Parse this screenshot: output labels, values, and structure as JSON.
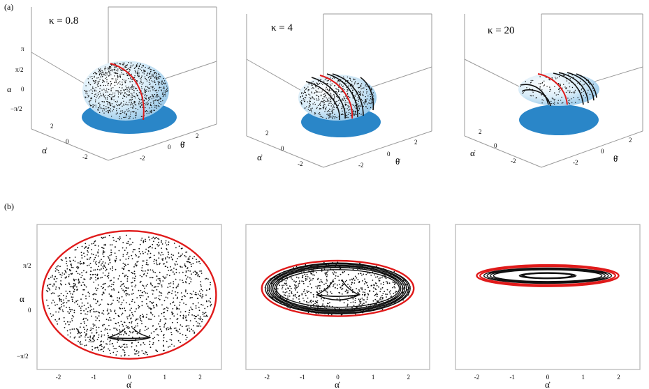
{
  "panel_labels": {
    "a": "(a)",
    "b": "(b)"
  },
  "top": {
    "kappa_labels": [
      "κ = 0.8",
      "κ = 4",
      "κ = 20"
    ],
    "z_axis_label": "α",
    "z_ticks": [
      "π",
      "π/2",
      "0",
      "−π/2"
    ],
    "adot_label": "α̇",
    "thetadot_label": "θ̇",
    "adot_ticks": [
      "2",
      "0",
      "-2"
    ],
    "thetadot_ticks": [
      "-2",
      "0",
      "2"
    ]
  },
  "bottom": {
    "y_axis_label": "α",
    "y_ticks": [
      "π/2",
      "0",
      "−π/2"
    ],
    "x_axis_label": "α̇",
    "x_ticks": [
      "-2",
      "-1",
      "0",
      "1",
      "2"
    ]
  },
  "colors": {
    "red_curve": "#e01a1a",
    "disc_blue": "#2a86c8",
    "ellipsoid_blue": "#a9d4ef",
    "frame_gray": "#b4b4b4"
  },
  "chart_data": [
    {
      "type": "scatter",
      "panel": "b1",
      "title": "",
      "xlabel": "α̇",
      "ylabel": "α",
      "xlim": [
        -2.6,
        2.6
      ],
      "ylim": [
        -1.7,
        1.7
      ],
      "series": [
        {
          "kind": "boundary",
          "center": [
            0,
            0.05
          ],
          "semi_axes": [
            2.45,
            1.5
          ]
        },
        {
          "kind": "islands",
          "center": [
            0,
            -0.95
          ],
          "semi_axes": [
            0.6,
            0.07
          ]
        }
      ]
    },
    {
      "type": "scatter",
      "panel": "b2",
      "title": "",
      "xlabel": "α̇",
      "ylabel": "",
      "xlim": [
        -2.6,
        2.6
      ],
      "ylim": [
        -1.7,
        1.7
      ],
      "series": [
        {
          "kind": "boundary",
          "center": [
            0,
            0.2
          ],
          "semi_axes": [
            2.15,
            0.65
          ]
        },
        {
          "kind": "tori",
          "center": [
            0,
            0.2
          ],
          "semi_axes": [
            2.05,
            0.58
          ]
        },
        {
          "kind": "islands",
          "center": [
            0,
            0.05
          ],
          "semi_axes": [
            0.6,
            0.12
          ]
        }
      ]
    },
    {
      "type": "scatter",
      "panel": "b3",
      "title": "",
      "xlabel": "α̇",
      "ylabel": "",
      "xlim": [
        -2.6,
        2.6
      ],
      "ylim": [
        -1.7,
        1.7
      ],
      "series": [
        {
          "kind": "boundary",
          "center": [
            0,
            0.5
          ],
          "semi_axes": [
            2.0,
            0.25
          ]
        },
        {
          "kind": "tori",
          "center": [
            0,
            0.5
          ],
          "semi_axes": [
            1.8,
            0.18
          ]
        },
        {
          "kind": "tori",
          "center": [
            0,
            0.5
          ],
          "semi_axes": [
            0.8,
            0.07
          ]
        }
      ]
    }
  ]
}
